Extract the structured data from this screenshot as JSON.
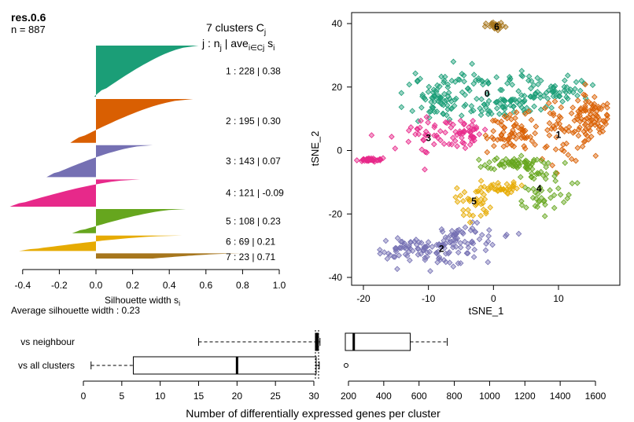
{
  "chart_data": [
    {
      "type": "bar",
      "kind": "silhouette",
      "title_bold": "res.0.6",
      "n_label": "n = 887",
      "header_1": "7  clusters  C",
      "header_1_sub": "j",
      "header_2_pre": "j :  n",
      "header_2_sub1": "j",
      "header_2_mid": " | ave",
      "header_2_sub2": "i∈Cj",
      "header_2_post": "  s",
      "header_2_sub3": "i",
      "xlabel": "Silhouette width s",
      "xlabel_sub": "i",
      "xlim": [
        -0.4,
        1.0
      ],
      "xticks": [
        -0.4,
        -0.2,
        0.0,
        0.2,
        0.4,
        0.6,
        0.8,
        1.0
      ],
      "xtick_labels": [
        "-0.4",
        "-0.2",
        "0.0",
        "0.2",
        "0.4",
        "0.6",
        "0.8",
        "1.0"
      ],
      "average_label": "Average silhouette width :  0.23",
      "clusters": [
        {
          "j": "1",
          "n": 228,
          "ave": 0.38,
          "max": 0.56,
          "min": -0.01,
          "color": "#1b9e77",
          "label": "1 :    228  |  0.38"
        },
        {
          "j": "2",
          "n": 195,
          "ave": 0.3,
          "max": 0.53,
          "min": -0.14,
          "color": "#d95f02",
          "label": "2 :    195  |  0.30"
        },
        {
          "j": "3",
          "n": 143,
          "ave": 0.07,
          "max": 0.31,
          "min": -0.27,
          "color": "#7570b3",
          "label": "3 :    143  |  0.07"
        },
        {
          "j": "4",
          "n": 121,
          "ave": -0.09,
          "max": 0.24,
          "min": -0.47,
          "color": "#e7298a",
          "label": "4 :   121  |  -0.09"
        },
        {
          "j": "5",
          "n": 108,
          "ave": 0.23,
          "max": 0.49,
          "min": -0.13,
          "color": "#66a61e",
          "label": "5 :    108  |  0.23"
        },
        {
          "j": "6",
          "n": 69,
          "ave": 0.21,
          "max": 0.47,
          "min": -0.42,
          "color": "#e6ab02",
          "label": "6 :   69  |  0.21"
        },
        {
          "j": "7",
          "n": 23,
          "ave": 0.71,
          "max": 0.8,
          "min": 0.31,
          "color": "#a6761d",
          "label": "7 :   23  |  0.71"
        }
      ]
    },
    {
      "type": "scatter",
      "xlabel": "tSNE_1",
      "ylabel": "tSNE_2",
      "xlim": [
        -22,
        18
      ],
      "ylim": [
        -40,
        42
      ],
      "xticks": [
        -20,
        -10,
        0,
        10
      ],
      "yticks": [
        -40,
        -20,
        0,
        20,
        40
      ],
      "clusters": [
        {
          "id": "0",
          "color": "#1b9e77",
          "count": 228,
          "label_xy": [
            -1,
            18
          ],
          "blobs": [
            {
              "cx": -3,
              "cy": 21,
              "sx": 5,
              "sy": 2.8
            },
            {
              "cx": -9,
              "cy": 15,
              "sx": 2.5,
              "sy": 2.5
            },
            {
              "cx": 9,
              "cy": 19,
              "sx": 3,
              "sy": 2
            },
            {
              "cx": 2,
              "cy": 14,
              "sx": 2.5,
              "sy": 2
            }
          ]
        },
        {
          "id": "1",
          "color": "#d95f02",
          "count": 195,
          "label_xy": [
            10,
            5
          ],
          "blobs": [
            {
              "cx": 11,
              "cy": 6,
              "sx": 3.2,
              "sy": 5
            },
            {
              "cx": 15,
              "cy": 11,
              "sx": 2,
              "sy": 3
            },
            {
              "cx": 3,
              "cy": 5,
              "sx": 2,
              "sy": 3
            }
          ]
        },
        {
          "id": "2",
          "color": "#7570b3",
          "count": 143,
          "label_xy": [
            -8,
            -31
          ],
          "blobs": [
            {
              "cx": -8,
              "cy": -31,
              "sx": 3,
              "sy": 2.5
            },
            {
              "cx": -4,
              "cy": -28,
              "sx": 2.5,
              "sy": 2.2
            },
            {
              "cx": -13,
              "cy": -31,
              "sx": 2,
              "sy": 1.5
            }
          ]
        },
        {
          "id": "3",
          "color": "#e7298a",
          "count": 121,
          "label_xy": [
            -10,
            4
          ],
          "blobs": [
            {
              "cx": -10,
              "cy": 4,
              "sx": 3,
              "sy": 3.5
            },
            {
              "cx": -4,
              "cy": 6,
              "sx": 2,
              "sy": 2.5
            },
            {
              "cx": -19,
              "cy": -3,
              "sx": 1,
              "sy": 0.3
            }
          ]
        },
        {
          "id": "4",
          "color": "#66a61e",
          "count": 108,
          "label_xy": [
            7,
            -12
          ],
          "blobs": [
            {
              "cx": 7,
              "cy": -12,
              "sx": 2.5,
              "sy": 4.5
            },
            {
              "cx": 3,
              "cy": -4,
              "sx": 2,
              "sy": 1
            }
          ]
        },
        {
          "id": "5",
          "color": "#e6ab02",
          "count": 69,
          "label_xy": [
            -3,
            -16
          ],
          "blobs": [
            {
              "cx": -3,
              "cy": -16,
              "sx": 1.3,
              "sy": 3
            },
            {
              "cx": 1,
              "cy": -12,
              "sx": 1.5,
              "sy": 1
            }
          ]
        },
        {
          "id": "6",
          "color": "#a6761d",
          "count": 23,
          "label_xy": [
            0.5,
            39
          ],
          "blobs": [
            {
              "cx": 0.5,
              "cy": 39,
              "sx": 0.8,
              "sy": 0.7
            }
          ]
        }
      ]
    },
    {
      "type": "box",
      "xlabel": "Number of differentially expressed genes per cluster",
      "rows": [
        {
          "label": "vs neighbour",
          "left": {
            "whisker_lo": 15,
            "q1": 30.2,
            "median": 30.4,
            "q3": 30.6,
            "whisker_hi": 30.8
          },
          "right": {
            "whisker_lo": 30,
            "q1": 180,
            "median": 230,
            "q3": 550,
            "whisker_hi": 760,
            "outliers": []
          }
        },
        {
          "label": "vs all clusters",
          "left": {
            "whisker_lo": 1,
            "q1": 6.5,
            "median": 20,
            "q3": 30.3,
            "whisker_hi": 30.7
          },
          "right": {
            "whisker_lo": 0,
            "q1": 0,
            "median": 0,
            "q3": 0,
            "whisker_hi": 0,
            "outliers": [
              200
            ]
          }
        }
      ],
      "left_axis": {
        "range": [
          0,
          30
        ],
        "ticks": [
          0,
          5,
          10,
          15,
          20,
          25,
          30
        ],
        "tick_labels": [
          "0",
          "5",
          "10",
          "15",
          "20",
          "25",
          "30"
        ]
      },
      "right_axis": {
        "range": [
          200,
          1600
        ],
        "ticks": [
          200,
          400,
          600,
          800,
          1000,
          1200,
          1400,
          1600
        ],
        "tick_labels": [
          "200",
          "400",
          "600",
          "800",
          "1000",
          "1200",
          "1400",
          "1600"
        ]
      }
    }
  ]
}
